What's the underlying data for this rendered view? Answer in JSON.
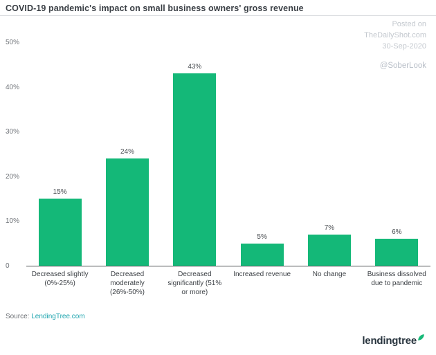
{
  "title": "COVID-19 pandemic's impact on small business owners' gross revenue",
  "watermark": {
    "lines": [
      "Posted on",
      "TheDailyShot.com",
      "30-Sep-2020"
    ],
    "handle": "@SoberLook"
  },
  "source": {
    "prefix": "Source: ",
    "link_text": "LendingTree.com"
  },
  "logo": {
    "text": "lendingtree"
  },
  "colors": {
    "bar": "#14b878",
    "link": "#1aa3ad",
    "axis_line": "#4c4f52",
    "watermark": "#c4c9cf"
  },
  "chart_data": {
    "type": "bar",
    "title": "COVID-19 pandemic's impact on small business owners' gross revenue",
    "categories": [
      "Decreased slightly (0%-25%)",
      "Decreased moderately (26%-50%)",
      "Decreased significantly (51% or more)",
      "Increased revenue",
      "No change",
      "Business dissolved due to pandemic"
    ],
    "category_lines": [
      [
        "Decreased slightly",
        "(0%-25%)"
      ],
      [
        "Decreased",
        "moderately",
        "(26%-50%)"
      ],
      [
        "Decreased",
        "significantly (51%",
        "or more)"
      ],
      [
        "Increased revenue"
      ],
      [
        "No change"
      ],
      [
        "Business dissolved",
        "due to pandemic"
      ]
    ],
    "values": [
      15,
      24,
      43,
      5,
      7,
      6
    ],
    "value_labels": [
      "15%",
      "24%",
      "43%",
      "5%",
      "7%",
      "6%"
    ],
    "xlabel": "",
    "ylabel": "",
    "ylim": [
      0,
      50
    ],
    "yticks": [
      "50%",
      "40%",
      "30%",
      "20%",
      "10%",
      "0"
    ],
    "ytick_values": [
      50,
      40,
      30,
      20,
      10,
      0
    ],
    "grid": false,
    "legend": false,
    "bar_color": "#14b878"
  }
}
